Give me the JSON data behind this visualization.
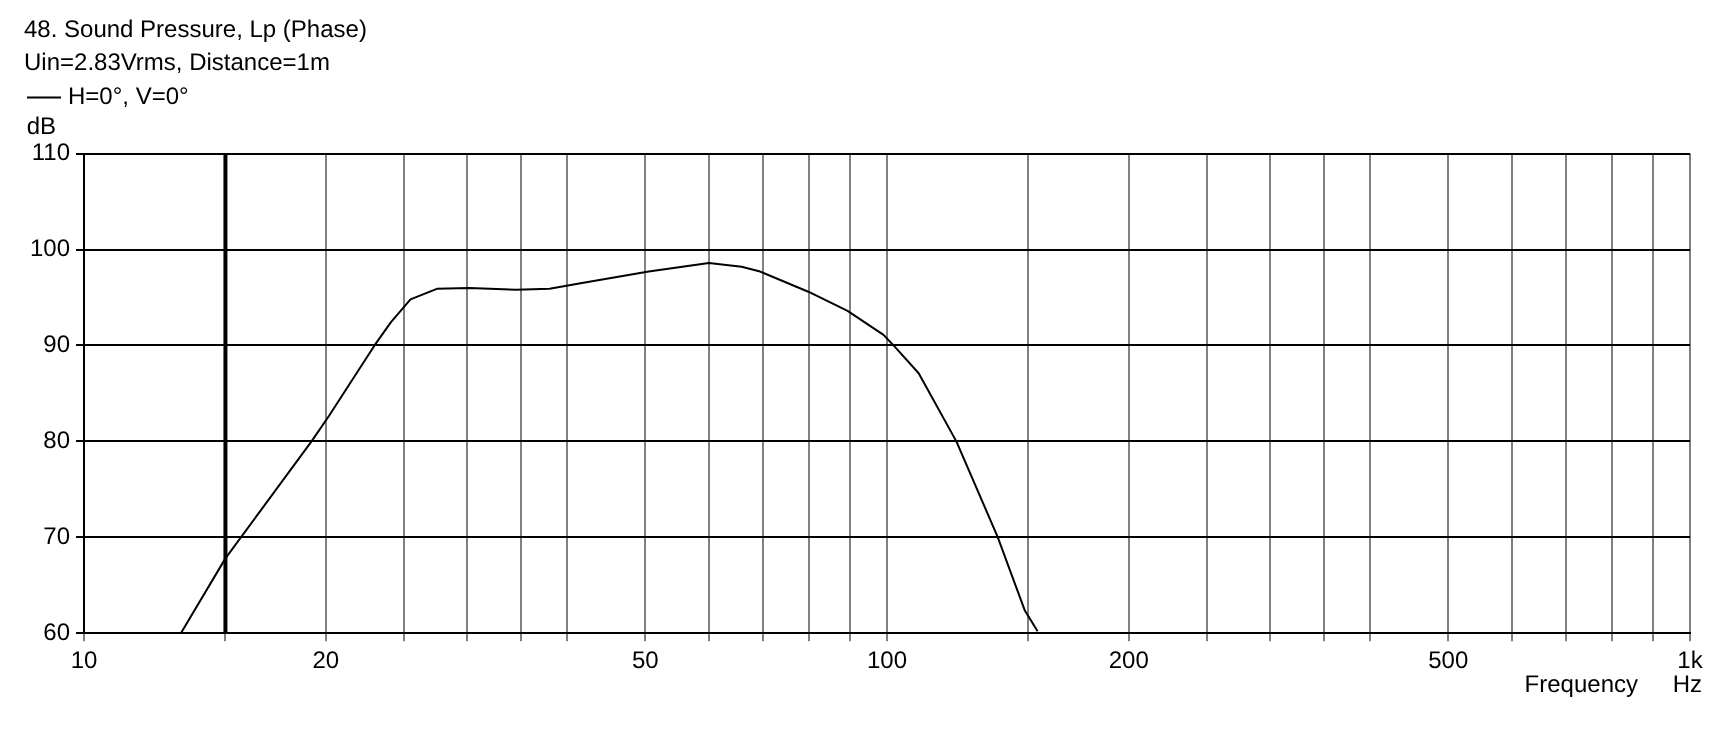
{
  "chart_data": {
    "type": "line",
    "title": "48. Sound Pressure, Lp (Phase)",
    "subtitle": "Uin=2.83Vrms, Distance=1m",
    "xlabel": "Frequency",
    "ylabel": "dB",
    "annotations": [
      "Hz"
    ],
    "log": "x",
    "grid": true,
    "legend": "top left",
    "marker": "none",
    "line_style": "solid",
    "xlim": [
      10,
      1000
    ],
    "ylim": [
      60,
      110
    ],
    "xticks": [
      10,
      {
        "value": 15,
        "label": null
      },
      20,
      {
        "value": 25,
        "label": null
      },
      {
        "value": 30,
        "label": null
      },
      {
        "value": 35,
        "label": null
      },
      {
        "value": 40,
        "label": null
      },
      50,
      {
        "value": 60,
        "label": null
      },
      {
        "value": 70,
        "label": null
      },
      {
        "value": 80,
        "label": null
      },
      {
        "value": 90,
        "label": null
      },
      100,
      {
        "value": 150,
        "label": null
      },
      200,
      {
        "value": 250,
        "label": null
      },
      {
        "value": 300,
        "label": null
      },
      {
        "value": 350,
        "label": null
      },
      {
        "value": 400,
        "label": null
      },
      500,
      {
        "value": 600,
        "label": null
      },
      {
        "value": 700,
        "label": null
      },
      {
        "value": 800,
        "label": null
      },
      {
        "value": 900,
        "label": null
      },
      {
        "value": 1000,
        "label": "1k"
      }
    ],
    "yticks": [
      60,
      70,
      80,
      90,
      100,
      110
    ],
    "ref_lines": [
      {
        "axis": "x",
        "value": 15,
        "label": null,
        "color": "#000000"
      }
    ],
    "series": [
      {
        "name": "H=0°, V=0°",
        "color": "#000000",
        "x": [
          13.2,
          15,
          19.2,
          20.2,
          23,
          24.1,
          25.5,
          27.5,
          30.2,
          34.5,
          38,
          41.7,
          50.5,
          60,
          65.9,
          69.5,
          79.8,
          89.3,
          99,
          101.9,
          109.5,
          122,
          137.4,
          148.4,
          154
        ],
        "values": [
          60,
          67.8,
          80,
          82.7,
          90,
          92.4,
          94.8,
          95.9,
          96,
          95.8,
          95.9,
          96.5,
          97.7,
          98.6,
          98.2,
          97.7,
          95.6,
          93.6,
          91.1,
          90,
          87.1,
          80,
          70,
          62.4,
          60.2
        ]
      }
    ]
  }
}
